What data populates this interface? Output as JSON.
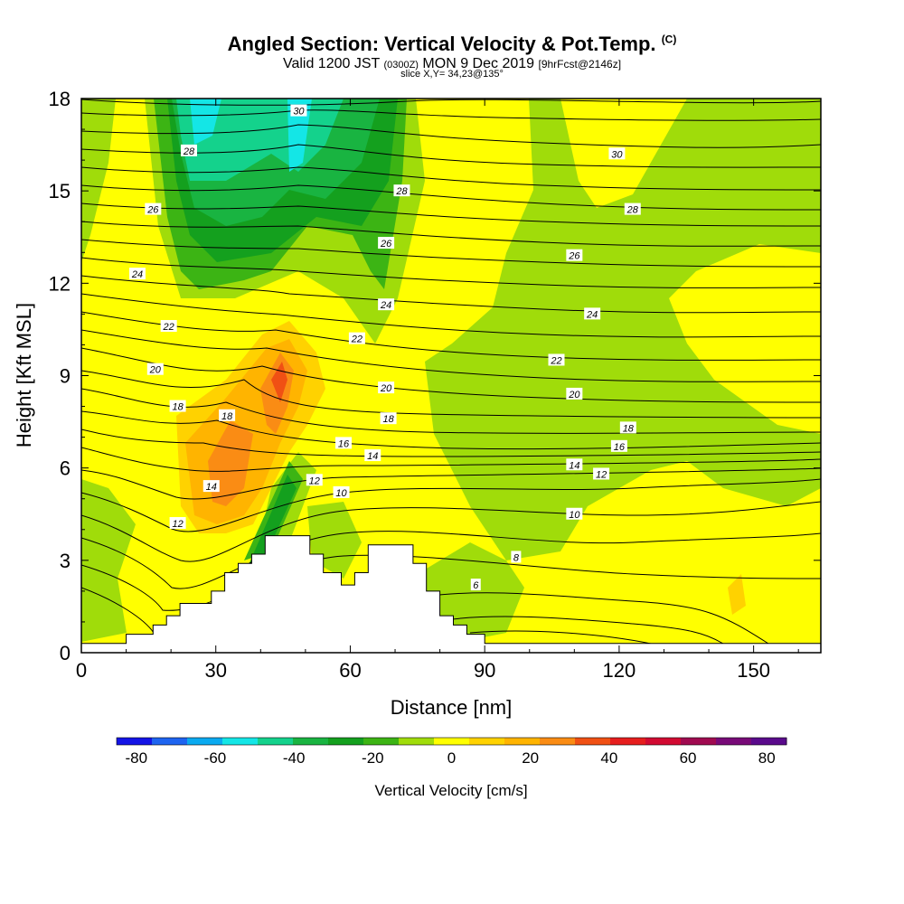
{
  "chart_data": {
    "type": "heatmap",
    "title": "Angled Section: Vertical Velocity & Pot.Temp.",
    "title_unit": "(C)",
    "subtitle_main": "Valid 1200 JST",
    "subtitle_utc": "(0300Z)",
    "subtitle_date": "MON 9 Dec 2019",
    "subtitle_fcst": "[9hrFcst@2146z]",
    "slice_label": "slice X,Y= 34,23@135°",
    "xlabel": "Distance [nm]",
    "ylabel": "Height [Kft MSL]",
    "xlim": [
      0,
      165
    ],
    "ylim": [
      0,
      18
    ],
    "x_ticks": [
      "0",
      "30",
      "60",
      "90",
      "120",
      "150"
    ],
    "y_ticks": [
      "0",
      "3",
      "6",
      "9",
      "12",
      "15",
      "18"
    ],
    "colorbar_label": "Vertical Velocity [cm/s]",
    "colorbar_ticks": [
      "-80",
      "-60",
      "-40",
      "-20",
      "0",
      "20",
      "40",
      "60",
      "80"
    ],
    "colorbar_range": [
      -85,
      85
    ],
    "colorbar_colors": [
      "#1414e6",
      "#1e64f0",
      "#0aaaf0",
      "#14e6e6",
      "#14d28c",
      "#19b441",
      "#14a01e",
      "#3cb414",
      "#a0dc0a",
      "#ffff00",
      "#ffd200",
      "#ffb400",
      "#fa8c14",
      "#f05014",
      "#e61e1e",
      "#d20a32",
      "#a00a50",
      "#780a78",
      "#5a0a8c"
    ],
    "theta_contour_labels": [
      {
        "label": "30",
        "x": 48.5,
        "y": 17.6
      },
      {
        "label": "28",
        "x": 24.0,
        "y": 16.3
      },
      {
        "label": "28",
        "x": 71.5,
        "y": 15.0
      },
      {
        "label": "30",
        "x": 119.5,
        "y": 16.2
      },
      {
        "label": "26",
        "x": 16.0,
        "y": 14.4
      },
      {
        "label": "28",
        "x": 123.0,
        "y": 14.4
      },
      {
        "label": "26",
        "x": 68.0,
        "y": 13.3
      },
      {
        "label": "26",
        "x": 110.0,
        "y": 12.9
      },
      {
        "label": "24",
        "x": 12.5,
        "y": 12.3
      },
      {
        "label": "24",
        "x": 68.0,
        "y": 11.3
      },
      {
        "label": "24",
        "x": 114.0,
        "y": 11.0
      },
      {
        "label": "22",
        "x": 19.5,
        "y": 10.6
      },
      {
        "label": "22",
        "x": 61.5,
        "y": 10.2
      },
      {
        "label": "22",
        "x": 106.0,
        "y": 9.5
      },
      {
        "label": "20",
        "x": 16.5,
        "y": 9.2
      },
      {
        "label": "20",
        "x": 68.0,
        "y": 8.6
      },
      {
        "label": "20",
        "x": 110.0,
        "y": 8.4
      },
      {
        "label": "18",
        "x": 21.5,
        "y": 8.0
      },
      {
        "label": "18",
        "x": 32.5,
        "y": 7.7
      },
      {
        "label": "18",
        "x": 68.5,
        "y": 7.6
      },
      {
        "label": "18",
        "x": 122.0,
        "y": 7.3
      },
      {
        "label": "16",
        "x": 58.5,
        "y": 6.8
      },
      {
        "label": "16",
        "x": 120.0,
        "y": 6.7
      },
      {
        "label": "14",
        "x": 65.0,
        "y": 6.4
      },
      {
        "label": "14",
        "x": 110.0,
        "y": 6.1
      },
      {
        "label": "12",
        "x": 52.0,
        "y": 5.6
      },
      {
        "label": "12",
        "x": 116.0,
        "y": 5.8
      },
      {
        "label": "14",
        "x": 29.0,
        "y": 5.4
      },
      {
        "label": "10",
        "x": 58.0,
        "y": 5.2
      },
      {
        "label": "10",
        "x": 110.0,
        "y": 4.5
      },
      {
        "label": "12",
        "x": 21.5,
        "y": 4.2
      },
      {
        "label": "8",
        "x": 97.0,
        "y": 3.1
      },
      {
        "label": "6",
        "x": 88.0,
        "y": 2.2
      }
    ],
    "terrain_profile": [
      [
        0,
        0.3
      ],
      [
        10,
        0.3
      ],
      [
        10,
        0.6
      ],
      [
        16,
        0.6
      ],
      [
        16,
        0.9
      ],
      [
        19,
        0.9
      ],
      [
        19,
        1.2
      ],
      [
        22,
        1.2
      ],
      [
        22,
        1.6
      ],
      [
        29,
        1.6
      ],
      [
        29,
        2.0
      ],
      [
        32,
        2.0
      ],
      [
        32,
        2.6
      ],
      [
        35,
        2.6
      ],
      [
        35,
        2.9
      ],
      [
        38,
        2.9
      ],
      [
        38,
        3.2
      ],
      [
        41,
        3.2
      ],
      [
        41,
        3.8
      ],
      [
        51,
        3.8
      ],
      [
        51,
        3.2
      ],
      [
        54,
        3.2
      ],
      [
        54,
        2.6
      ],
      [
        58,
        2.6
      ],
      [
        58,
        2.2
      ],
      [
        61,
        2.2
      ],
      [
        61,
        2.6
      ],
      [
        64,
        2.6
      ],
      [
        64,
        3.5
      ],
      [
        74,
        3.5
      ],
      [
        74,
        2.9
      ],
      [
        77,
        2.9
      ],
      [
        77,
        2.0
      ],
      [
        80,
        2.0
      ],
      [
        80,
        1.2
      ],
      [
        83,
        1.2
      ],
      [
        83,
        0.9
      ],
      [
        86,
        0.9
      ],
      [
        86,
        0.6
      ],
      [
        90,
        0.6
      ],
      [
        90,
        0.3
      ],
      [
        165,
        0.3
      ]
    ]
  }
}
